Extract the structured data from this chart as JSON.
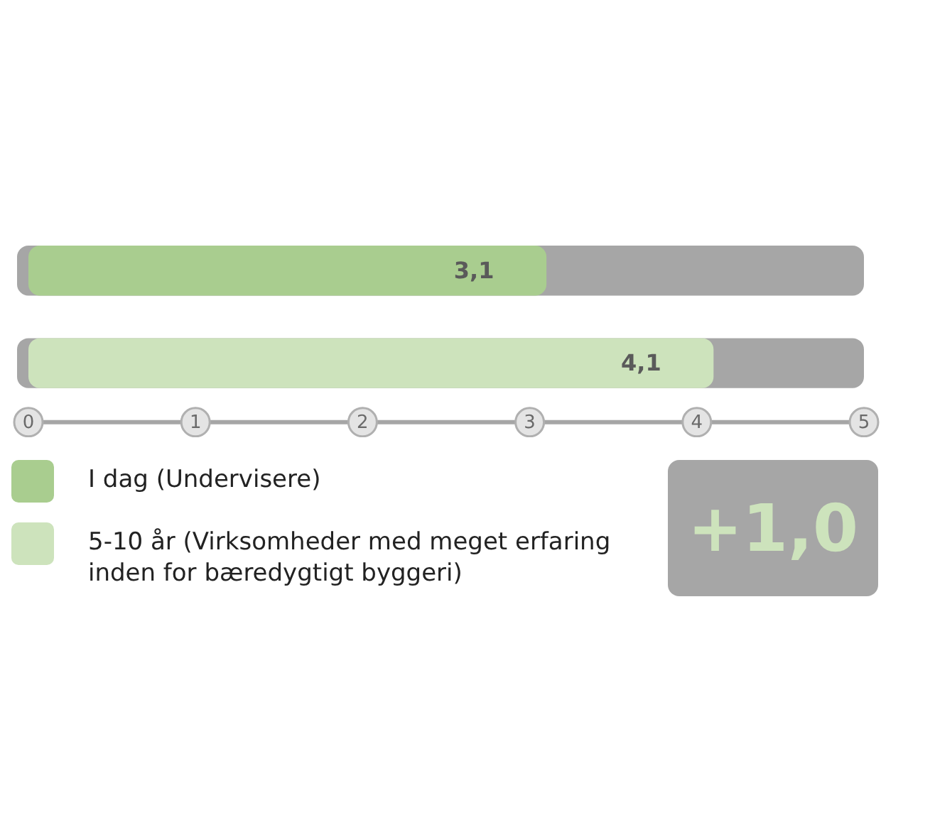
{
  "chart_data": {
    "type": "bar",
    "orientation": "horizontal",
    "categories": [
      null,
      null
    ],
    "series": [
      {
        "name": "I dag (Undervisere)",
        "color": "#a9cd8f",
        "values": [
          3.1,
          null
        ],
        "value_labels": [
          "3,1",
          null
        ]
      },
      {
        "name": "5-10 år (Virksomheder med meget erfaring inden for bæredygtigt byggeri)",
        "color": "#cde3bc",
        "values": [
          null,
          4.1
        ],
        "value_labels": [
          null,
          "4,1"
        ]
      }
    ],
    "stacked": true,
    "xlim": [
      0,
      5
    ],
    "xticks": [
      0,
      1,
      2,
      3,
      4,
      5
    ],
    "grid": false,
    "legend": "bottom",
    "tick_labels": "x",
    "annotations": [
      "+1,0"
    ]
  }
}
